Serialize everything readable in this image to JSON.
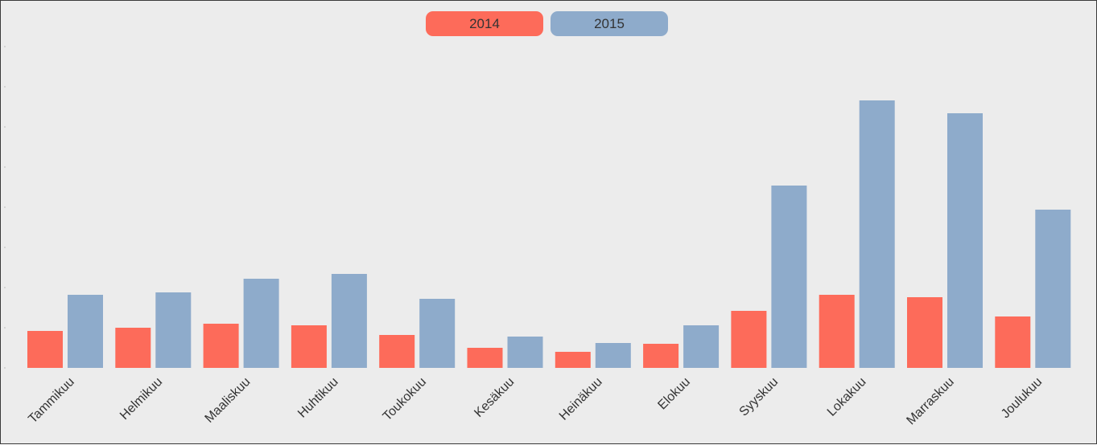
{
  "chart_data": {
    "type": "bar",
    "categories": [
      "Tammikuu",
      "Helmikuu",
      "Maaliskuu",
      "Huhtikuu",
      "Toukokuu",
      "Kesäkuu",
      "Heinäkuu",
      "Elokuu",
      "Syyskuu",
      "Lokakuu",
      "Marraskuu",
      "Joulukuu"
    ],
    "series": [
      {
        "name": "2014",
        "color": "#fd6b5a",
        "values": [
          46,
          50,
          55,
          53,
          41,
          25,
          20,
          30,
          71,
          91,
          88,
          64
        ]
      },
      {
        "name": "2015",
        "color": "#8eabcb",
        "values": [
          91,
          94,
          111,
          117,
          86,
          39,
          31,
          53,
          227,
          333,
          317,
          197
        ]
      }
    ],
    "ylim": [
      0,
      400
    ],
    "grid": false,
    "legend_position": "top-center"
  }
}
